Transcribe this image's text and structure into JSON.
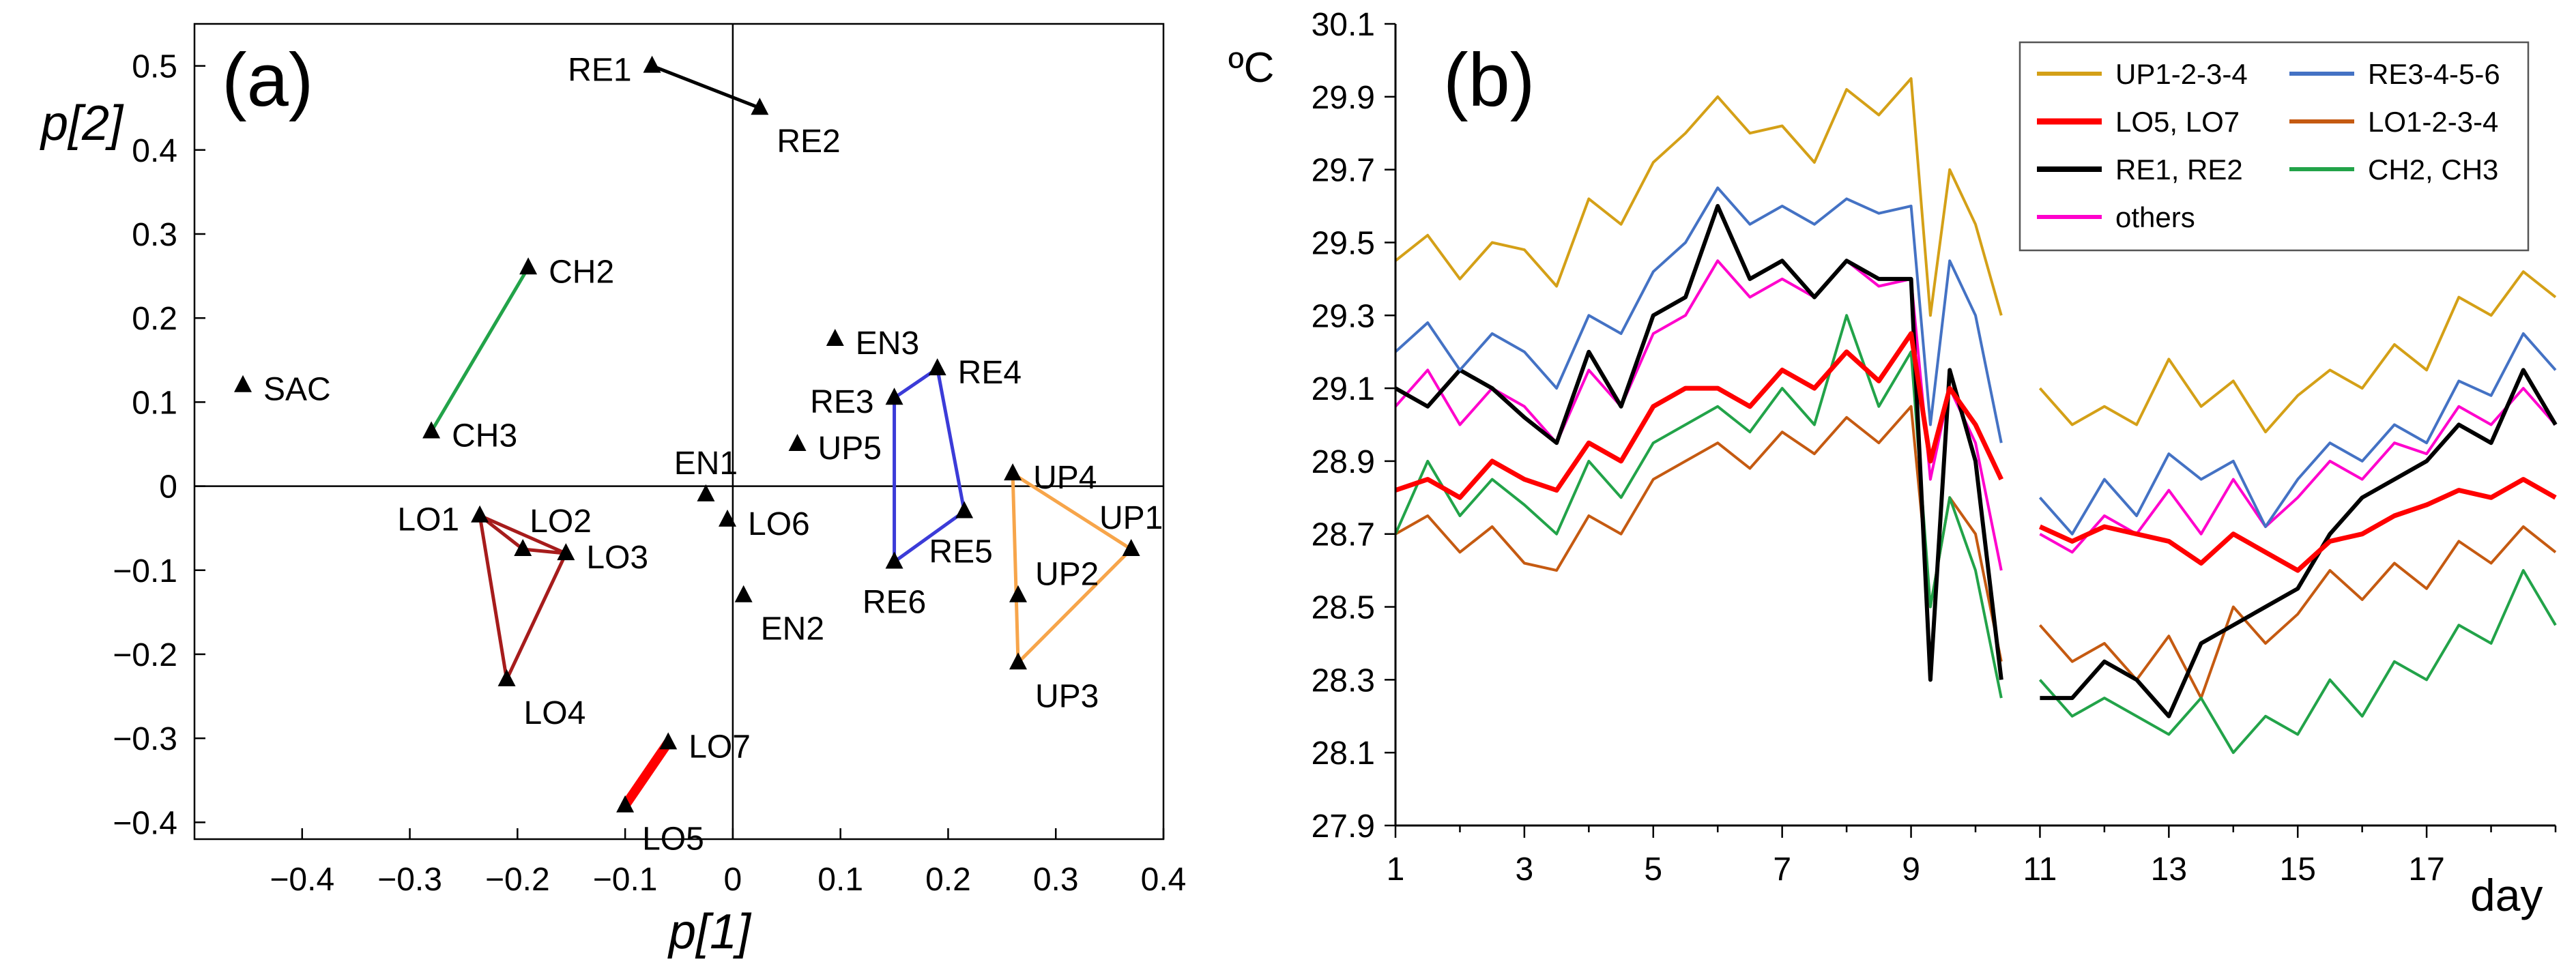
{
  "chart_data": [
    {
      "type": "scatter",
      "panel_label": "(a)",
      "xlabel": "p[1]",
      "ylabel": "p[2]",
      "xlim": [
        -0.5,
        0.4
      ],
      "ylim": [
        -0.42,
        0.55
      ],
      "xticks": [
        -0.4,
        -0.3,
        -0.2,
        -0.1,
        0,
        0.1,
        0.2,
        0.3,
        0.4
      ],
      "xtick_labels": [
        "−0.4",
        "−0.3",
        "−0.2",
        "−0.1",
        "0",
        "0.1",
        "0.2",
        "0.3",
        "0.4"
      ],
      "yticks": [
        0.5,
        0.4,
        0.3,
        0.2,
        0.1,
        0,
        -0.1,
        -0.2,
        -0.3,
        -0.4
      ],
      "ytick_labels": [
        "0.5",
        "0.4",
        "0.3",
        "0.2",
        "0.1",
        "0",
        "−0.1",
        "−0.2",
        "−0.3",
        "−0.4"
      ],
      "points": [
        {
          "label": "RE1",
          "x": -0.075,
          "y": 0.5,
          "anchor": "left"
        },
        {
          "label": "RE2",
          "x": 0.025,
          "y": 0.45,
          "anchor": "right-below"
        },
        {
          "label": "CH2",
          "x": -0.19,
          "y": 0.26,
          "anchor": "right"
        },
        {
          "label": "SAC",
          "x": -0.455,
          "y": 0.12,
          "anchor": "right"
        },
        {
          "label": "CH3",
          "x": -0.28,
          "y": 0.065,
          "anchor": "right"
        },
        {
          "label": "EN3",
          "x": 0.095,
          "y": 0.175,
          "anchor": "right"
        },
        {
          "label": "RE4",
          "x": 0.19,
          "y": 0.14,
          "anchor": "right"
        },
        {
          "label": "RE3",
          "x": 0.15,
          "y": 0.105,
          "anchor": "left"
        },
        {
          "label": "UP5",
          "x": 0.06,
          "y": 0.05,
          "anchor": "right"
        },
        {
          "label": "EN1",
          "x": -0.025,
          "y": -0.01,
          "anchor": "above"
        },
        {
          "label": "UP4",
          "x": 0.26,
          "y": 0.015,
          "anchor": "right"
        },
        {
          "label": "LO6",
          "x": -0.005,
          "y": -0.04,
          "anchor": "right"
        },
        {
          "label": "RE5",
          "x": 0.215,
          "y": -0.03,
          "anchor": "below-left"
        },
        {
          "label": "UP1",
          "x": 0.37,
          "y": -0.075,
          "anchor": "above"
        },
        {
          "label": "RE6",
          "x": 0.15,
          "y": -0.09,
          "anchor": "below"
        },
        {
          "label": "LO1",
          "x": -0.235,
          "y": -0.035,
          "anchor": "left"
        },
        {
          "label": "LO2",
          "x": -0.195,
          "y": -0.075,
          "anchor": "above-right"
        },
        {
          "label": "LO3",
          "x": -0.155,
          "y": -0.08,
          "anchor": "right"
        },
        {
          "label": "EN2",
          "x": 0.01,
          "y": -0.13,
          "anchor": "right-below"
        },
        {
          "label": "UP2",
          "x": 0.265,
          "y": -0.13,
          "anchor": "right-above"
        },
        {
          "label": "UP3",
          "x": 0.265,
          "y": -0.21,
          "anchor": "right-below"
        },
        {
          "label": "LO4",
          "x": -0.21,
          "y": -0.23,
          "anchor": "right-below"
        },
        {
          "label": "LO7",
          "x": -0.06,
          "y": -0.305,
          "anchor": "right"
        },
        {
          "label": "LO5",
          "x": -0.1,
          "y": -0.38,
          "anchor": "right-below"
        }
      ],
      "groups": [
        {
          "name": "RE1-RE2",
          "color": "#000000",
          "members": [
            "RE1",
            "RE2"
          ],
          "closed": false
        },
        {
          "name": "CH2-CH3",
          "color": "#22a349",
          "members": [
            "CH2",
            "CH3"
          ],
          "closed": false
        },
        {
          "name": "LO5-LO7",
          "color": "#ff0000",
          "members": [
            "LO5",
            "LO7"
          ],
          "closed": false
        },
        {
          "name": "LO1-2-3-4",
          "color": "#a61c1c",
          "members": [
            "LO1",
            "LO3",
            "LO2",
            "LO1",
            "LO4",
            "LO3"
          ],
          "closed": false
        },
        {
          "name": "RE3-4-5-6",
          "color": "#3b3bd8",
          "members": [
            "RE3",
            "RE4",
            "RE5",
            "RE6"
          ],
          "closed": true
        },
        {
          "name": "UP1-2-3-4",
          "color": "#f7a54a",
          "members": [
            "UP4",
            "UP1",
            "UP3",
            "UP4"
          ],
          "closed": false
        }
      ]
    },
    {
      "type": "line",
      "panel_label": "(b)",
      "ylabel": "ºC",
      "xlabel": "day",
      "xlim": [
        1,
        19
      ],
      "ylim": [
        27.9,
        30.1
      ],
      "xticks": [
        1,
        3,
        5,
        7,
        9,
        11,
        13,
        15,
        17
      ],
      "xtick_labels": [
        "1",
        "3",
        "5",
        "7",
        "9",
        "11",
        "13",
        "15",
        "17"
      ],
      "yticks": [
        30.1,
        29.9,
        29.7,
        29.5,
        29.3,
        29.1,
        28.9,
        28.7,
        28.5,
        28.3,
        28.1,
        27.9
      ],
      "ytick_labels": [
        "30.1",
        "29.9",
        "29.7",
        "29.5",
        "29.3",
        "29.1",
        "28.9",
        "28.7",
        "28.5",
        "28.3",
        "28.1",
        "27.9"
      ],
      "gap": [
        10.45,
        10.85
      ],
      "legend": {
        "placement": "top-right",
        "columns": 2
      },
      "series": [
        {
          "name": "UP1-2-3-4",
          "color": "#d4a017",
          "width": 4,
          "x": [
            1,
            1.5,
            2,
            2.5,
            3,
            3.5,
            4,
            4.5,
            5,
            5.5,
            6,
            6.5,
            7,
            7.5,
            8,
            8.5,
            9,
            9.3,
            9.6,
            10,
            10.4,
            11,
            11.5,
            12,
            12.5,
            13,
            13.5,
            14,
            14.5,
            15,
            15.5,
            16,
            16.5,
            17,
            17.5,
            18,
            18.5,
            19
          ],
          "y": [
            29.45,
            29.52,
            29.4,
            29.5,
            29.48,
            29.38,
            29.62,
            29.55,
            29.72,
            29.8,
            29.9,
            29.8,
            29.82,
            29.72,
            29.92,
            29.85,
            29.95,
            29.3,
            29.7,
            29.55,
            29.3,
            29.1,
            29.0,
            29.05,
            29.0,
            29.18,
            29.05,
            29.12,
            28.98,
            29.08,
            29.15,
            29.1,
            29.22,
            29.15,
            29.35,
            29.3,
            29.42,
            29.35
          ]
        },
        {
          "name": "RE3-4-5-6",
          "color": "#4472c4",
          "width": 4,
          "x": [
            1,
            1.5,
            2,
            2.5,
            3,
            3.5,
            4,
            4.5,
            5,
            5.5,
            6,
            6.5,
            7,
            7.5,
            8,
            8.5,
            9,
            9.3,
            9.6,
            10,
            10.4,
            11,
            11.5,
            12,
            12.5,
            13,
            13.5,
            14,
            14.5,
            15,
            15.5,
            16,
            16.5,
            17,
            17.5,
            18,
            18.5,
            19
          ],
          "y": [
            29.2,
            29.28,
            29.15,
            29.25,
            29.2,
            29.1,
            29.3,
            29.25,
            29.42,
            29.5,
            29.65,
            29.55,
            29.6,
            29.55,
            29.62,
            29.58,
            29.6,
            29.0,
            29.45,
            29.3,
            28.95,
            28.8,
            28.7,
            28.85,
            28.75,
            28.92,
            28.85,
            28.9,
            28.72,
            28.85,
            28.95,
            28.9,
            29.0,
            28.95,
            29.12,
            29.08,
            29.25,
            29.15
          ]
        },
        {
          "name": "LO5, LO7",
          "color": "#ff0000",
          "width": 7,
          "x": [
            1,
            1.5,
            2,
            2.5,
            3,
            3.5,
            4,
            4.5,
            5,
            5.5,
            6,
            6.5,
            7,
            7.5,
            8,
            8.5,
            9,
            9.3,
            9.6,
            10,
            10.4,
            11,
            11.5,
            12,
            12.5,
            13,
            13.5,
            14,
            14.5,
            15,
            15.5,
            16,
            16.5,
            17,
            17.5,
            18,
            18.5,
            19
          ],
          "y": [
            28.82,
            28.85,
            28.8,
            28.9,
            28.85,
            28.82,
            28.95,
            28.9,
            29.05,
            29.1,
            29.1,
            29.05,
            29.15,
            29.1,
            29.2,
            29.12,
            29.25,
            28.9,
            29.1,
            29.0,
            28.85,
            28.72,
            28.68,
            28.72,
            28.7,
            28.68,
            28.62,
            28.7,
            28.65,
            28.6,
            28.68,
            28.7,
            28.75,
            28.78,
            28.82,
            28.8,
            28.85,
            28.8
          ]
        },
        {
          "name": "LO1-2-3-4",
          "color": "#c55a11",
          "width": 4,
          "x": [
            1,
            1.5,
            2,
            2.5,
            3,
            3.5,
            4,
            4.5,
            5,
            5.5,
            6,
            6.5,
            7,
            7.5,
            8,
            8.5,
            9,
            9.3,
            9.6,
            10,
            10.4,
            11,
            11.5,
            12,
            12.5,
            13,
            13.5,
            14,
            14.5,
            15,
            15.5,
            16,
            16.5,
            17,
            17.5,
            18,
            18.5,
            19
          ],
          "y": [
            28.7,
            28.75,
            28.65,
            28.72,
            28.62,
            28.6,
            28.75,
            28.7,
            28.85,
            28.9,
            28.95,
            28.88,
            28.98,
            28.92,
            29.02,
            28.95,
            29.05,
            28.5,
            28.8,
            28.7,
            28.35,
            28.45,
            28.35,
            28.4,
            28.3,
            28.42,
            28.25,
            28.5,
            28.4,
            28.48,
            28.6,
            28.52,
            28.62,
            28.55,
            28.68,
            28.62,
            28.72,
            28.65
          ]
        },
        {
          "name": "RE1, RE2",
          "color": "#000000",
          "width": 6,
          "x": [
            1,
            1.5,
            2,
            2.5,
            3,
            3.5,
            4,
            4.5,
            5,
            5.5,
            6,
            6.5,
            7,
            7.5,
            8,
            8.5,
            9,
            9.3,
            9.6,
            10,
            10.4,
            11,
            11.5,
            12,
            12.5,
            13,
            13.5,
            14,
            14.5,
            15,
            15.5,
            16,
            16.5,
            17,
            17.5,
            18,
            18.5,
            19
          ],
          "y": [
            29.1,
            29.05,
            29.15,
            29.1,
            29.02,
            28.95,
            29.2,
            29.05,
            29.3,
            29.35,
            29.6,
            29.4,
            29.45,
            29.35,
            29.45,
            29.4,
            29.4,
            28.3,
            29.15,
            28.9,
            28.3,
            28.25,
            28.25,
            28.35,
            28.3,
            28.2,
            28.4,
            28.45,
            28.5,
            28.55,
            28.7,
            28.8,
            28.85,
            28.9,
            29.0,
            28.95,
            29.15,
            29.0
          ]
        },
        {
          "name": "CH2, CH3",
          "color": "#22a349",
          "width": 4,
          "x": [
            1,
            1.5,
            2,
            2.5,
            3,
            3.5,
            4,
            4.5,
            5,
            5.5,
            6,
            6.5,
            7,
            7.5,
            8,
            8.5,
            9,
            9.3,
            9.6,
            10,
            10.4,
            11,
            11.5,
            12,
            12.5,
            13,
            13.5,
            14,
            14.5,
            15,
            15.5,
            16,
            16.5,
            17,
            17.5,
            18,
            18.5,
            19
          ],
          "y": [
            28.7,
            28.9,
            28.75,
            28.85,
            28.78,
            28.7,
            28.9,
            28.8,
            28.95,
            29.0,
            29.05,
            28.98,
            29.1,
            29.0,
            29.3,
            29.05,
            29.2,
            28.5,
            28.8,
            28.6,
            28.25,
            28.3,
            28.2,
            28.25,
            28.2,
            28.15,
            28.25,
            28.1,
            28.2,
            28.15,
            28.3,
            28.2,
            28.35,
            28.3,
            28.45,
            28.4,
            28.6,
            28.45
          ]
        },
        {
          "name": "others",
          "color": "#ff00cc",
          "width": 4,
          "x": [
            1,
            1.5,
            2,
            2.5,
            3,
            3.5,
            4,
            4.5,
            5,
            5.5,
            6,
            6.5,
            7,
            7.5,
            8,
            8.5,
            9,
            9.3,
            9.6,
            10,
            10.4,
            11,
            11.5,
            12,
            12.5,
            13,
            13.5,
            14,
            14.5,
            15,
            15.5,
            16,
            16.5,
            17,
            17.5,
            18,
            18.5,
            19
          ],
          "y": [
            29.05,
            29.15,
            29.0,
            29.1,
            29.05,
            28.95,
            29.15,
            29.05,
            29.25,
            29.3,
            29.45,
            29.35,
            29.4,
            29.35,
            29.45,
            29.38,
            29.4,
            28.85,
            29.1,
            28.95,
            28.6,
            28.7,
            28.65,
            28.75,
            28.7,
            28.82,
            28.7,
            28.85,
            28.72,
            28.8,
            28.9,
            28.85,
            28.95,
            28.92,
            29.05,
            29.0,
            29.1,
            29.0
          ]
        }
      ]
    }
  ]
}
